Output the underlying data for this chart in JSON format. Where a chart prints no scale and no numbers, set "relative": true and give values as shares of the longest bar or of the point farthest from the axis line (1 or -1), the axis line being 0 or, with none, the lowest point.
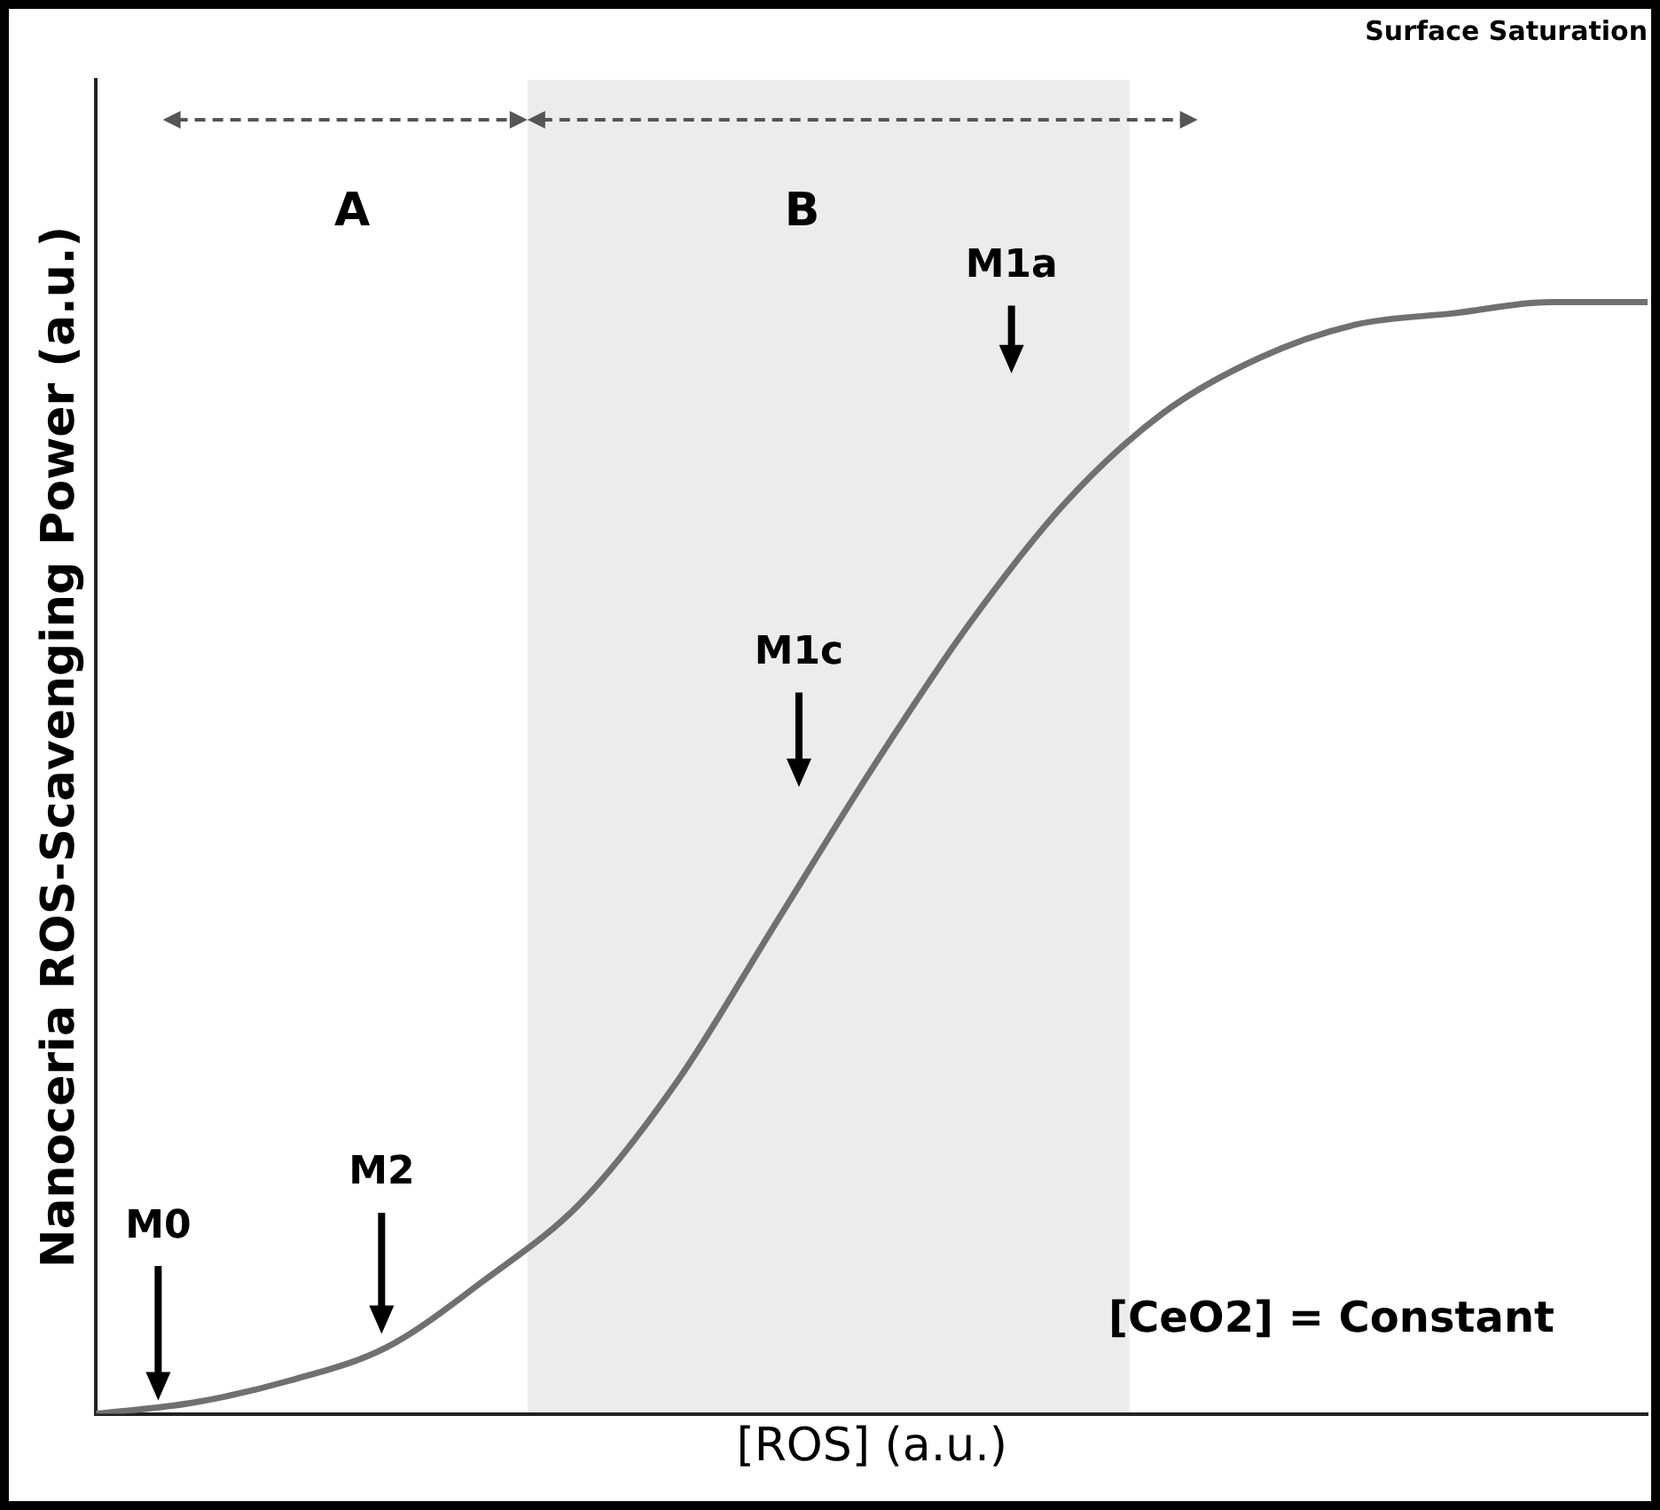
{
  "chart_data": {
    "type": "line",
    "relative": true,
    "xlabel": "[ROS] (a.u.)",
    "ylabel": "Nanoceria ROS-Scavenging Power (a.u.)",
    "categories": [
      null,
      null,
      null,
      null,
      null,
      null,
      null,
      null,
      null,
      null,
      null,
      null,
      null,
      null,
      null,
      null,
      null
    ],
    "grid": false,
    "legend": false,
    "marker": "none",
    "line_style": "solid",
    "series": [
      {
        "color": "#707070",
        "values": [
          0,
          0.01,
          0.03,
          0.06,
          0.12,
          0.19,
          0.3,
          0.44,
          0.58,
          0.71,
          0.82,
          0.9,
          0.95,
          0.98,
          0.99,
          1,
          1
        ]
      }
    ],
    "annotations": [
      "Surface Saturation",
      "[CeO2] = Constant",
      "A",
      "B",
      "M0",
      "M2",
      "M1c",
      "M1a"
    ]
  }
}
